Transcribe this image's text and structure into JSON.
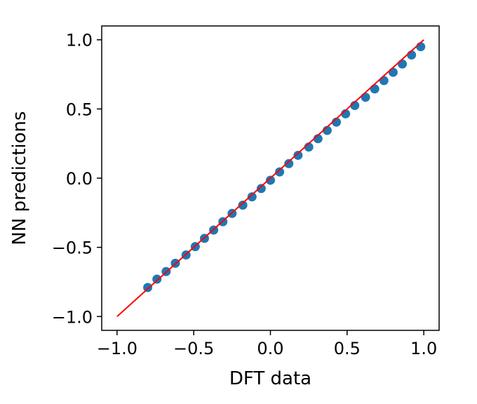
{
  "chart_data": {
    "type": "scatter",
    "xlabel": "DFT data",
    "ylabel": "NN predictions",
    "xlim": [
      -1.1,
      1.1
    ],
    "ylim": [
      -1.1,
      1.1
    ],
    "x_ticks": [
      -1.0,
      -0.5,
      0.0,
      0.5,
      1.0
    ],
    "y_ticks": [
      -1.0,
      -0.5,
      0.0,
      0.5,
      1.0
    ],
    "x_tick_labels": [
      "−1.0",
      "−0.5",
      "0.0",
      "0.5",
      "1.0"
    ],
    "y_tick_labels": [
      "−1.0",
      "−0.5",
      "0.0",
      "0.5",
      "1.0"
    ],
    "grid": false,
    "series": [
      {
        "kind": "scatter",
        "color": "#1f77b4",
        "x": [
          -0.8,
          -0.74,
          -0.68,
          -0.62,
          -0.55,
          -0.49,
          -0.43,
          -0.37,
          -0.31,
          -0.25,
          -0.18,
          -0.12,
          -0.06,
          0.0,
          0.06,
          0.12,
          0.18,
          0.25,
          0.31,
          0.37,
          0.43,
          0.49,
          0.55,
          0.62,
          0.68,
          0.74,
          0.8,
          0.86,
          0.92,
          0.98
        ],
        "y": [
          -0.79,
          -0.73,
          -0.675,
          -0.615,
          -0.555,
          -0.495,
          -0.435,
          -0.375,
          -0.315,
          -0.255,
          -0.195,
          -0.135,
          -0.075,
          -0.015,
          0.045,
          0.105,
          0.165,
          0.225,
          0.285,
          0.345,
          0.405,
          0.465,
          0.525,
          0.585,
          0.645,
          0.705,
          0.765,
          0.825,
          0.89,
          0.95
        ]
      },
      {
        "kind": "line",
        "color": "#ff0000",
        "x": [
          -1.0,
          1.0
        ],
        "y": [
          -1.0,
          1.0
        ]
      }
    ]
  }
}
